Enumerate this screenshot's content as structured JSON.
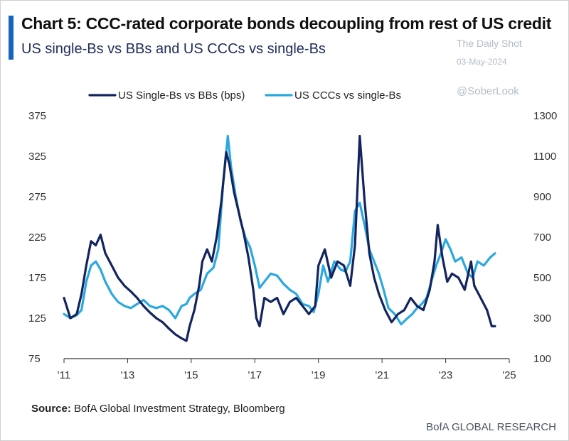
{
  "header": {
    "title": "Chart 5: CCC-rated corporate bonds decoupling from rest of US credit",
    "subtitle": "US single-Bs vs BBs and US CCCs vs single-Bs",
    "accent_color": "#1565c0"
  },
  "watermark": {
    "publisher": "The Daily Shot",
    "date": "03-May-2024",
    "handle": "@SoberLook"
  },
  "footer": {
    "source_label": "Source:",
    "source_text": "BofA Global Investment Strategy, Bloomberg",
    "brand": "BofA GLOBAL RESEARCH"
  },
  "chart_data": {
    "type": "line",
    "x_tick_labels": [
      "'11",
      "'13",
      "'15",
      "'17",
      "'19",
      "'21",
      "'23",
      "'25"
    ],
    "x_tick_years": [
      2011,
      2013,
      2015,
      2017,
      2019,
      2021,
      2023,
      2025
    ],
    "xlim": [
      2011,
      2025
    ],
    "y_left_ticks": [
      75,
      125,
      175,
      225,
      275,
      325,
      375
    ],
    "y_left_lim": [
      75,
      375
    ],
    "y_right_ticks": [
      100,
      300,
      500,
      700,
      900,
      1100,
      1300
    ],
    "y_right_lim": [
      100,
      1300
    ],
    "legend_position": "top-center",
    "grid": false,
    "series": [
      {
        "name": "US Single-Bs vs BBs (bps)",
        "axis": "left",
        "color": "#13245e",
        "points": [
          [
            2011.0,
            150
          ],
          [
            2011.2,
            125
          ],
          [
            2011.4,
            130
          ],
          [
            2011.55,
            155
          ],
          [
            2011.7,
            190
          ],
          [
            2011.85,
            220
          ],
          [
            2012.0,
            215
          ],
          [
            2012.15,
            228
          ],
          [
            2012.3,
            205
          ],
          [
            2012.5,
            190
          ],
          [
            2012.7,
            175
          ],
          [
            2012.9,
            165
          ],
          [
            2013.1,
            158
          ],
          [
            2013.3,
            150
          ],
          [
            2013.5,
            140
          ],
          [
            2013.7,
            132
          ],
          [
            2013.9,
            125
          ],
          [
            2014.1,
            120
          ],
          [
            2014.3,
            112
          ],
          [
            2014.5,
            105
          ],
          [
            2014.7,
            100
          ],
          [
            2014.85,
            97
          ],
          [
            2014.95,
            115
          ],
          [
            2015.1,
            135
          ],
          [
            2015.25,
            165
          ],
          [
            2015.35,
            195
          ],
          [
            2015.5,
            210
          ],
          [
            2015.65,
            195
          ],
          [
            2015.8,
            225
          ],
          [
            2015.95,
            270
          ],
          [
            2016.1,
            330
          ],
          [
            2016.2,
            315
          ],
          [
            2016.35,
            280
          ],
          [
            2016.5,
            255
          ],
          [
            2016.65,
            230
          ],
          [
            2016.8,
            200
          ],
          [
            2016.95,
            160
          ],
          [
            2017.05,
            125
          ],
          [
            2017.15,
            115
          ],
          [
            2017.3,
            150
          ],
          [
            2017.5,
            145
          ],
          [
            2017.7,
            150
          ],
          [
            2017.9,
            130
          ],
          [
            2018.1,
            145
          ],
          [
            2018.3,
            150
          ],
          [
            2018.5,
            140
          ],
          [
            2018.7,
            130
          ],
          [
            2018.9,
            140
          ],
          [
            2019.0,
            190
          ],
          [
            2019.2,
            210
          ],
          [
            2019.4,
            175
          ],
          [
            2019.6,
            195
          ],
          [
            2019.8,
            190
          ],
          [
            2020.0,
            165
          ],
          [
            2020.15,
            215
          ],
          [
            2020.3,
            350
          ],
          [
            2020.45,
            270
          ],
          [
            2020.6,
            205
          ],
          [
            2020.75,
            175
          ],
          [
            2020.9,
            155
          ],
          [
            2021.1,
            135
          ],
          [
            2021.3,
            120
          ],
          [
            2021.5,
            130
          ],
          [
            2021.7,
            135
          ],
          [
            2021.9,
            150
          ],
          [
            2022.1,
            140
          ],
          [
            2022.3,
            135
          ],
          [
            2022.5,
            160
          ],
          [
            2022.65,
            195
          ],
          [
            2022.75,
            240
          ],
          [
            2022.9,
            200
          ],
          [
            2023.05,
            170
          ],
          [
            2023.2,
            180
          ],
          [
            2023.4,
            175
          ],
          [
            2023.6,
            160
          ],
          [
            2023.8,
            195
          ],
          [
            2023.9,
            165
          ],
          [
            2024.1,
            150
          ],
          [
            2024.3,
            135
          ],
          [
            2024.45,
            115
          ],
          [
            2024.55,
            115
          ]
        ]
      },
      {
        "name": "US CCCs vs single-Bs",
        "axis": "right",
        "color": "#2aa8e0",
        "points": [
          [
            2011.0,
            320
          ],
          [
            2011.2,
            300
          ],
          [
            2011.4,
            315
          ],
          [
            2011.55,
            340
          ],
          [
            2011.7,
            480
          ],
          [
            2011.85,
            560
          ],
          [
            2012.0,
            580
          ],
          [
            2012.15,
            540
          ],
          [
            2012.3,
            480
          ],
          [
            2012.5,
            420
          ],
          [
            2012.7,
            380
          ],
          [
            2012.9,
            360
          ],
          [
            2013.1,
            350
          ],
          [
            2013.3,
            370
          ],
          [
            2013.5,
            390
          ],
          [
            2013.7,
            360
          ],
          [
            2013.9,
            350
          ],
          [
            2014.1,
            360
          ],
          [
            2014.3,
            340
          ],
          [
            2014.5,
            300
          ],
          [
            2014.7,
            360
          ],
          [
            2014.85,
            370
          ],
          [
            2014.95,
            400
          ],
          [
            2015.1,
            420
          ],
          [
            2015.3,
            440
          ],
          [
            2015.5,
            520
          ],
          [
            2015.7,
            550
          ],
          [
            2015.85,
            640
          ],
          [
            2016.0,
            960
          ],
          [
            2016.15,
            1200
          ],
          [
            2016.25,
            1050
          ],
          [
            2016.4,
            900
          ],
          [
            2016.55,
            780
          ],
          [
            2016.7,
            700
          ],
          [
            2016.85,
            650
          ],
          [
            2017.0,
            560
          ],
          [
            2017.15,
            450
          ],
          [
            2017.3,
            480
          ],
          [
            2017.5,
            520
          ],
          [
            2017.7,
            510
          ],
          [
            2017.9,
            470
          ],
          [
            2018.1,
            440
          ],
          [
            2018.3,
            420
          ],
          [
            2018.5,
            370
          ],
          [
            2018.7,
            360
          ],
          [
            2018.85,
            330
          ],
          [
            2019.0,
            420
          ],
          [
            2019.15,
            560
          ],
          [
            2019.3,
            480
          ],
          [
            2019.5,
            580
          ],
          [
            2019.7,
            540
          ],
          [
            2019.85,
            530
          ],
          [
            2020.0,
            580
          ],
          [
            2020.15,
            830
          ],
          [
            2020.3,
            870
          ],
          [
            2020.45,
            760
          ],
          [
            2020.6,
            640
          ],
          [
            2020.75,
            580
          ],
          [
            2020.9,
            520
          ],
          [
            2021.05,
            440
          ],
          [
            2021.2,
            350
          ],
          [
            2021.4,
            320
          ],
          [
            2021.6,
            270
          ],
          [
            2021.8,
            300
          ],
          [
            2021.95,
            320
          ],
          [
            2022.1,
            350
          ],
          [
            2022.25,
            370
          ],
          [
            2022.4,
            400
          ],
          [
            2022.55,
            480
          ],
          [
            2022.7,
            560
          ],
          [
            2022.85,
            620
          ],
          [
            2023.0,
            690
          ],
          [
            2023.15,
            640
          ],
          [
            2023.3,
            580
          ],
          [
            2023.5,
            600
          ],
          [
            2023.7,
            520
          ],
          [
            2023.85,
            500
          ],
          [
            2024.0,
            580
          ],
          [
            2024.2,
            560
          ],
          [
            2024.4,
            600
          ],
          [
            2024.55,
            620
          ]
        ]
      }
    ]
  }
}
